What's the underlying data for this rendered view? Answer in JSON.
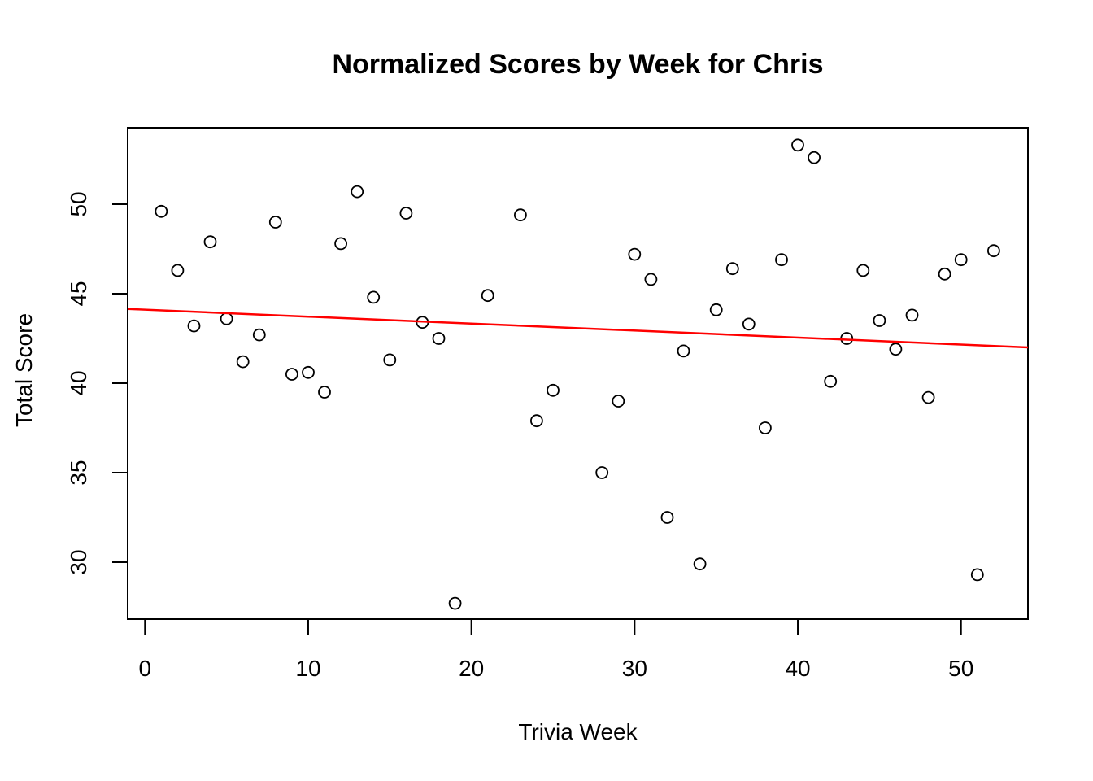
{
  "figure": {
    "background": "#FFFFFF"
  },
  "chart_data": {
    "type": "scatter",
    "title": "Normalized Scores by Week for Chris",
    "xlabel": "Trivia Week",
    "ylabel": "Total Score",
    "x_ticks": [
      0,
      10,
      20,
      30,
      40,
      50
    ],
    "y_ticks": [
      30,
      35,
      40,
      45,
      50
    ],
    "xlim": [
      -1.06,
      54.1
    ],
    "ylim": [
      26.82,
      54.27
    ],
    "grid": false,
    "legend": "none",
    "point_shape": "open-circle",
    "point_color": "#000000",
    "axis_color": "#000000",
    "series": [
      {
        "name": "weekly-normalized-score",
        "points": [
          [
            1,
            49.6
          ],
          [
            2,
            46.3
          ],
          [
            3,
            43.2
          ],
          [
            4,
            47.9
          ],
          [
            5,
            43.6
          ],
          [
            6,
            41.2
          ],
          [
            7,
            42.7
          ],
          [
            8,
            49.0
          ],
          [
            9,
            40.5
          ],
          [
            10,
            40.6
          ],
          [
            11,
            39.5
          ],
          [
            12,
            47.8
          ],
          [
            13,
            50.7
          ],
          [
            14,
            44.8
          ],
          [
            15,
            41.3
          ],
          [
            16,
            49.5
          ],
          [
            17,
            43.4
          ],
          [
            18,
            42.5
          ],
          [
            19,
            27.7
          ],
          [
            21,
            44.9
          ],
          [
            23,
            49.4
          ],
          [
            24,
            37.9
          ],
          [
            25,
            39.6
          ],
          [
            28,
            35.0
          ],
          [
            29,
            39.0
          ],
          [
            30,
            47.2
          ],
          [
            31,
            45.8
          ],
          [
            32,
            32.5
          ],
          [
            33,
            41.8
          ],
          [
            34,
            29.9
          ],
          [
            35,
            44.1
          ],
          [
            36,
            46.4
          ],
          [
            37,
            43.3
          ],
          [
            38,
            37.5
          ],
          [
            39,
            46.9
          ],
          [
            40,
            53.3
          ],
          [
            41,
            52.6
          ],
          [
            42,
            40.1
          ],
          [
            43,
            42.5
          ],
          [
            44,
            46.3
          ],
          [
            45,
            43.5
          ],
          [
            46,
            41.9
          ],
          [
            47,
            43.8
          ],
          [
            48,
            39.2
          ],
          [
            49,
            46.1
          ],
          [
            50,
            46.9
          ],
          [
            51,
            29.3
          ],
          [
            52,
            47.4
          ]
        ]
      }
    ],
    "trend_line": {
      "color": "#FF0000",
      "slope": -0.039,
      "intercept": 44.11,
      "x_start": -1.06,
      "y_start": 44.15,
      "x_end": 54.1,
      "y_end": 42.0
    }
  }
}
